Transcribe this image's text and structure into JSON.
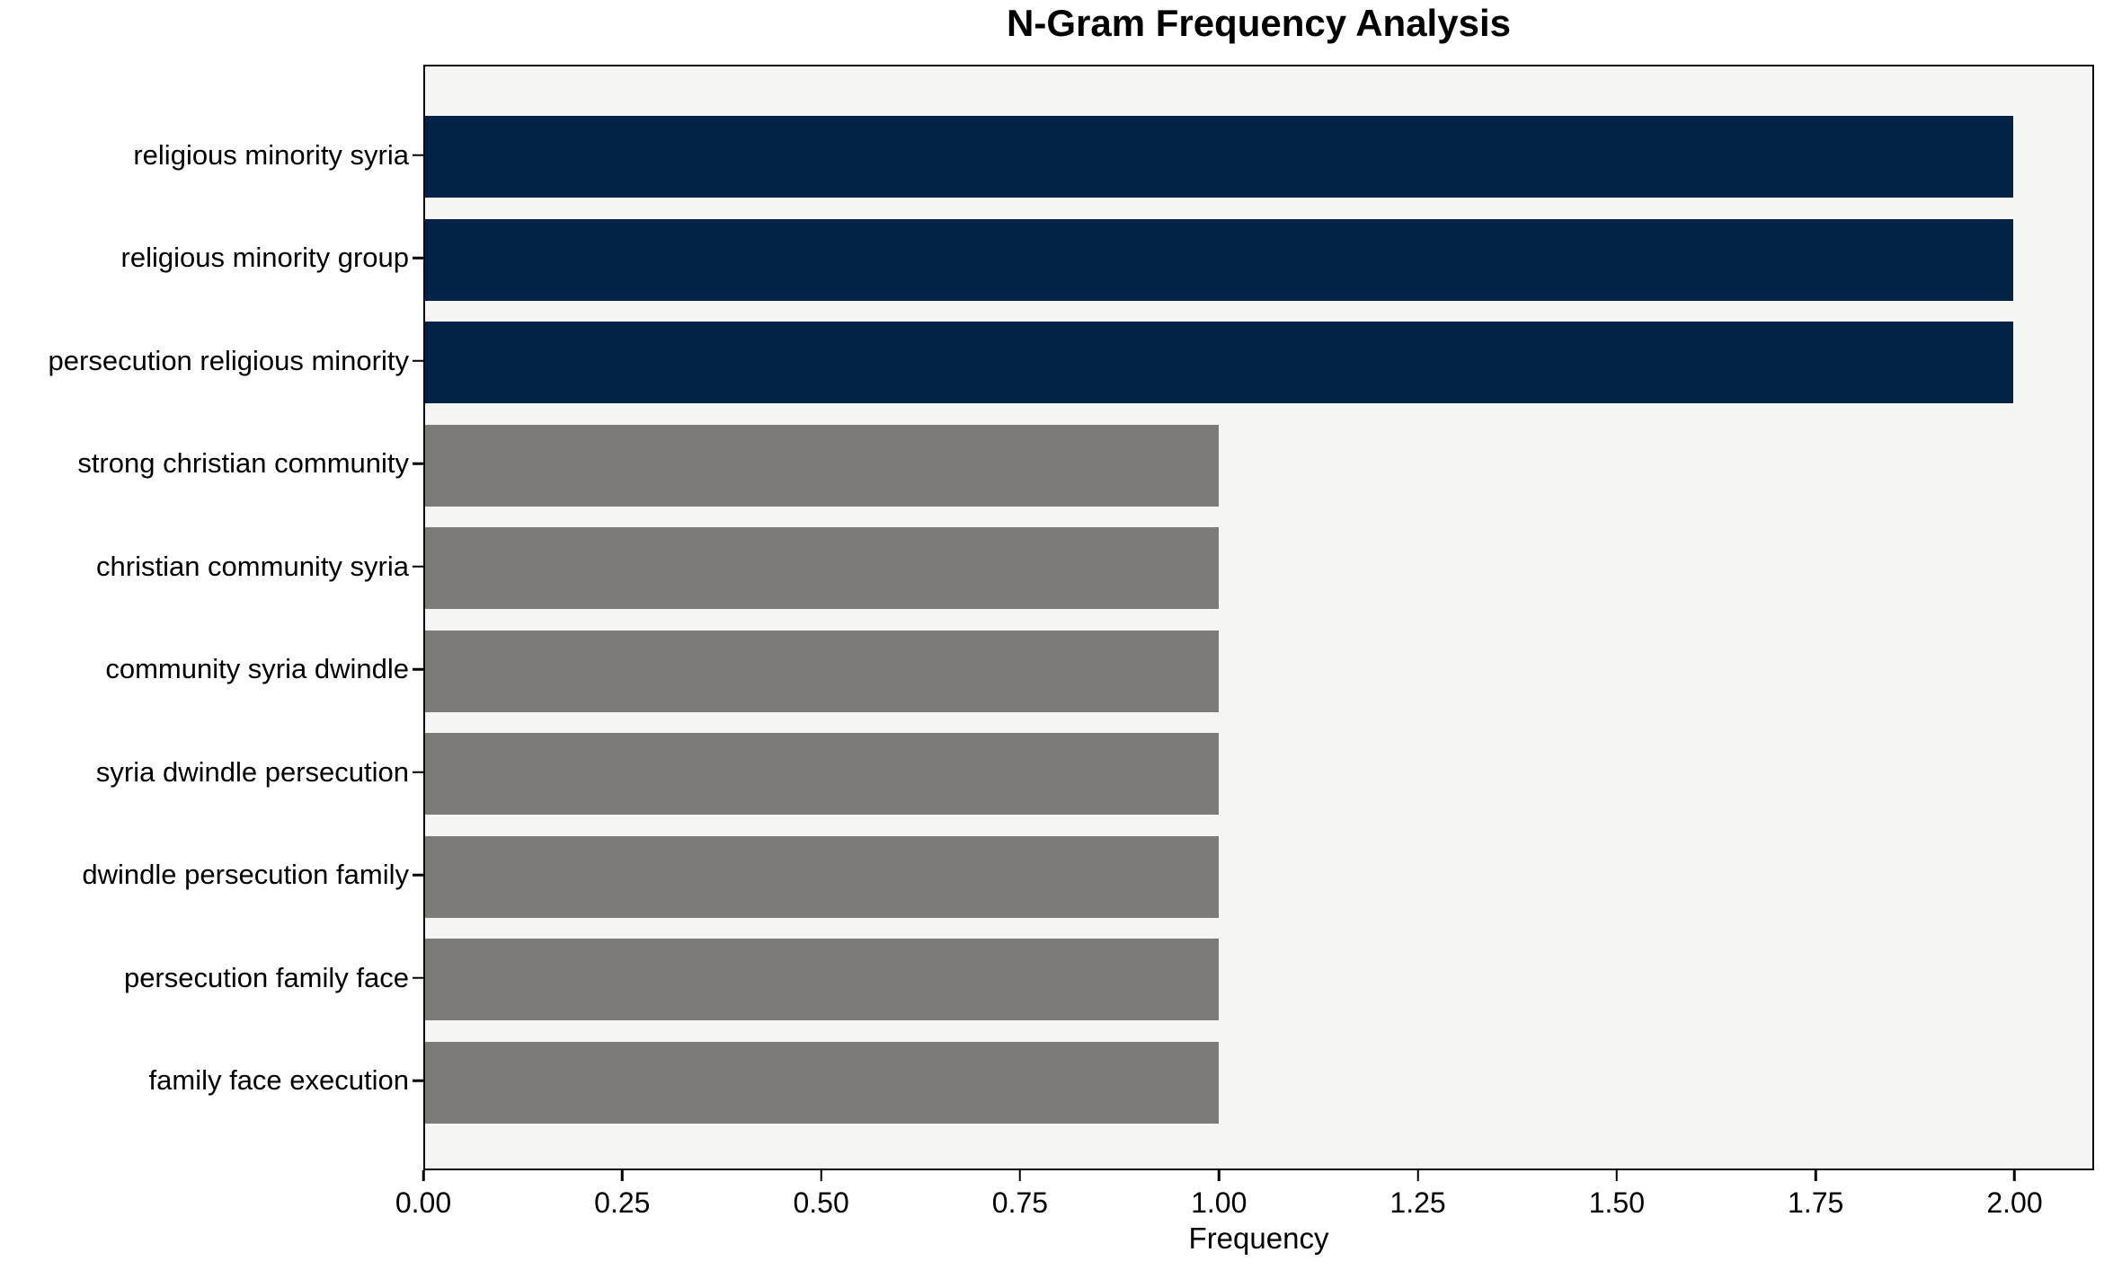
{
  "chart_data": {
    "type": "bar",
    "orientation": "horizontal",
    "title": "N-Gram Frequency Analysis",
    "xlabel": "Frequency",
    "ylabel": "",
    "categories": [
      "religious minority syria",
      "religious minority group",
      "persecution religious minority",
      "strong christian community",
      "christian community syria",
      "community syria dwindle",
      "syria dwindle persecution",
      "dwindle persecution family",
      "persecution family face",
      "family face execution"
    ],
    "values": [
      2,
      2,
      2,
      1,
      1,
      1,
      1,
      1,
      1,
      1
    ],
    "bar_colors": [
      "#032248",
      "#032248",
      "#032248",
      "#7d7b77",
      "#7d7b77",
      "#7d7b77",
      "#7d7b77",
      "#7d7b77",
      "#7d7b77",
      "#7d7b77"
    ],
    "xlim": [
      0,
      2.1
    ],
    "x_tick_labels": [
      "0.00",
      "0.25",
      "0.50",
      "0.75",
      "1.00",
      "1.25",
      "1.50",
      "1.75",
      "2.00"
    ],
    "x_tick_values": [
      0,
      0.25,
      0.5,
      0.75,
      1.0,
      1.25,
      1.5,
      1.75,
      2.0
    ],
    "grid": false,
    "legend": "none",
    "plot_background": "#f5f5f4",
    "spine_color": "#000000"
  }
}
